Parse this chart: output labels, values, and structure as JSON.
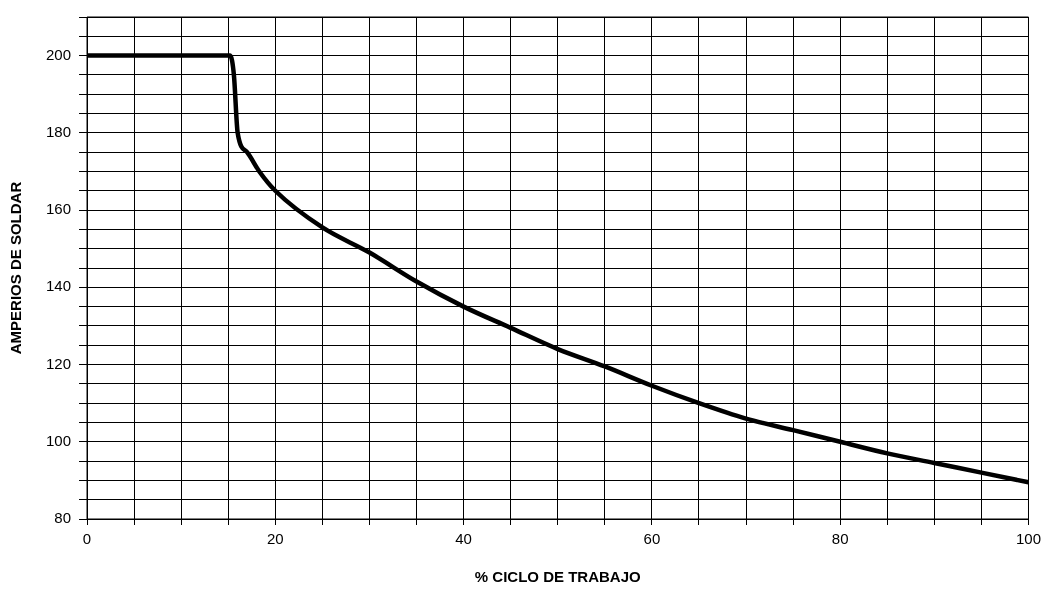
{
  "chart_data": {
    "type": "line",
    "xlabel": "% CICLO DE TRABAJO",
    "ylabel": "AMPERIOS DE SOLDAR",
    "x": [
      0,
      15.2,
      15.6,
      16,
      17,
      18.3,
      20,
      25,
      30,
      35,
      40,
      45,
      50,
      55,
      60,
      65,
      70,
      75,
      80,
      85,
      90,
      95,
      100
    ],
    "series": [
      {
        "color": "#000000",
        "values": [
          200,
          200,
          195,
          180,
          175,
          170,
          165,
          155.5,
          149,
          141.5,
          135,
          129.5,
          124,
          119.5,
          114.5,
          110,
          106,
          103,
          100,
          97,
          94.5,
          92,
          89.5
        ]
      }
    ],
    "xlim": [
      0,
      100
    ],
    "xticks": [
      0,
      {
        "value": 5,
        "label": null
      },
      {
        "value": 10,
        "label": null
      },
      {
        "value": 15,
        "label": null
      },
      20,
      {
        "value": 25,
        "label": null
      },
      {
        "value": 30,
        "label": null
      },
      {
        "value": 35,
        "label": null
      },
      40,
      {
        "value": 45,
        "label": null
      },
      {
        "value": 50,
        "label": null
      },
      {
        "value": 55,
        "label": null
      },
      60,
      {
        "value": 65,
        "label": null
      },
      {
        "value": 70,
        "label": null
      },
      {
        "value": 75,
        "label": null
      },
      80,
      {
        "value": 85,
        "label": null
      },
      {
        "value": 90,
        "label": null
      },
      {
        "value": 95,
        "label": null
      },
      100
    ],
    "ylim": [
      80,
      210
    ],
    "yticks": [
      80,
      {
        "value": 85,
        "label": null
      },
      {
        "value": 90,
        "label": null
      },
      {
        "value": 95,
        "label": null
      },
      100,
      {
        "value": 105,
        "label": null
      },
      {
        "value": 110,
        "label": null
      },
      {
        "value": 115,
        "label": null
      },
      120,
      {
        "value": 125,
        "label": null
      },
      {
        "value": 130,
        "label": null
      },
      {
        "value": 135,
        "label": null
      },
      140,
      {
        "value": 145,
        "label": null
      },
      {
        "value": 150,
        "label": null
      },
      {
        "value": 155,
        "label": null
      },
      160,
      {
        "value": 165,
        "label": null
      },
      {
        "value": 170,
        "label": null
      },
      {
        "value": 175,
        "label": null
      },
      180,
      {
        "value": 185,
        "label": null
      },
      {
        "value": 190,
        "label": null
      },
      {
        "value": 195,
        "label": null
      },
      200,
      {
        "value": 205,
        "label": null
      },
      {
        "value": 210,
        "label": null
      }
    ],
    "grid": true,
    "marker": "none",
    "line_style": "solid",
    "legend": false
  }
}
